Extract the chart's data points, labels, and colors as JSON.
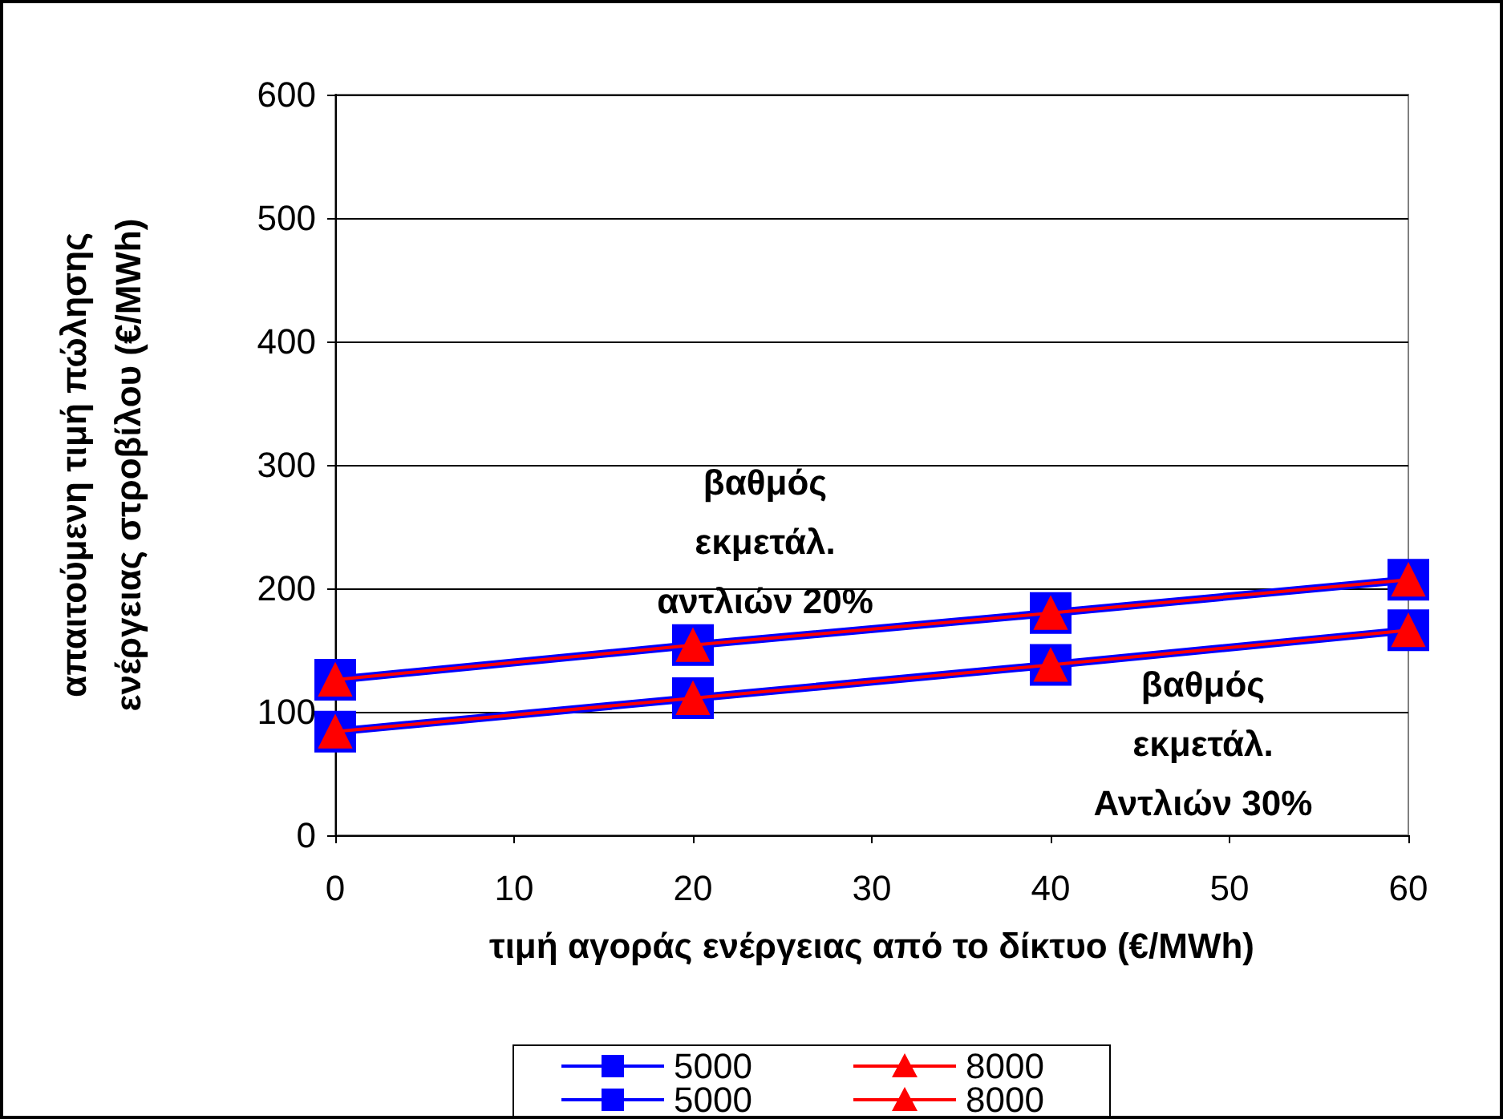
{
  "chart_data": {
    "type": "line",
    "xlabel": "τιμή αγοράς ενέργειας από το δίκτυο (€/MWh)",
    "ylabel": "απαιτούμενη τιμή πώλησης\nενέργειας στροβίλου (€/MWh)",
    "x": [
      0,
      20,
      40,
      60
    ],
    "series": [
      {
        "name": "5000",
        "color": "#0000ff",
        "marker": "square",
        "values": [
          126,
          154,
          180,
          207
        ]
      },
      {
        "name": "8000",
        "color": "#ff0000",
        "marker": "triangle",
        "values": [
          126,
          154,
          180,
          207
        ]
      },
      {
        "name": "5000",
        "color": "#0000ff",
        "marker": "square",
        "values": [
          84,
          111,
          138,
          166
        ]
      },
      {
        "name": "8000",
        "color": "#ff0000",
        "marker": "triangle",
        "values": [
          84,
          111,
          138,
          166
        ]
      }
    ],
    "xlim": [
      0,
      60
    ],
    "xticks": [
      0,
      10,
      20,
      30,
      40,
      50,
      60
    ],
    "ylim": [
      0,
      600
    ],
    "yticks": [
      0,
      100,
      200,
      300,
      400,
      500,
      600
    ],
    "grid": "y",
    "legend": "bottom",
    "line_style": "solid",
    "annotations": [
      "βαθμός\nεκμετάλ.\nαντλιών 20%",
      "βαθμός\nεκμετάλ.\nΑντλιών 30%"
    ]
  }
}
